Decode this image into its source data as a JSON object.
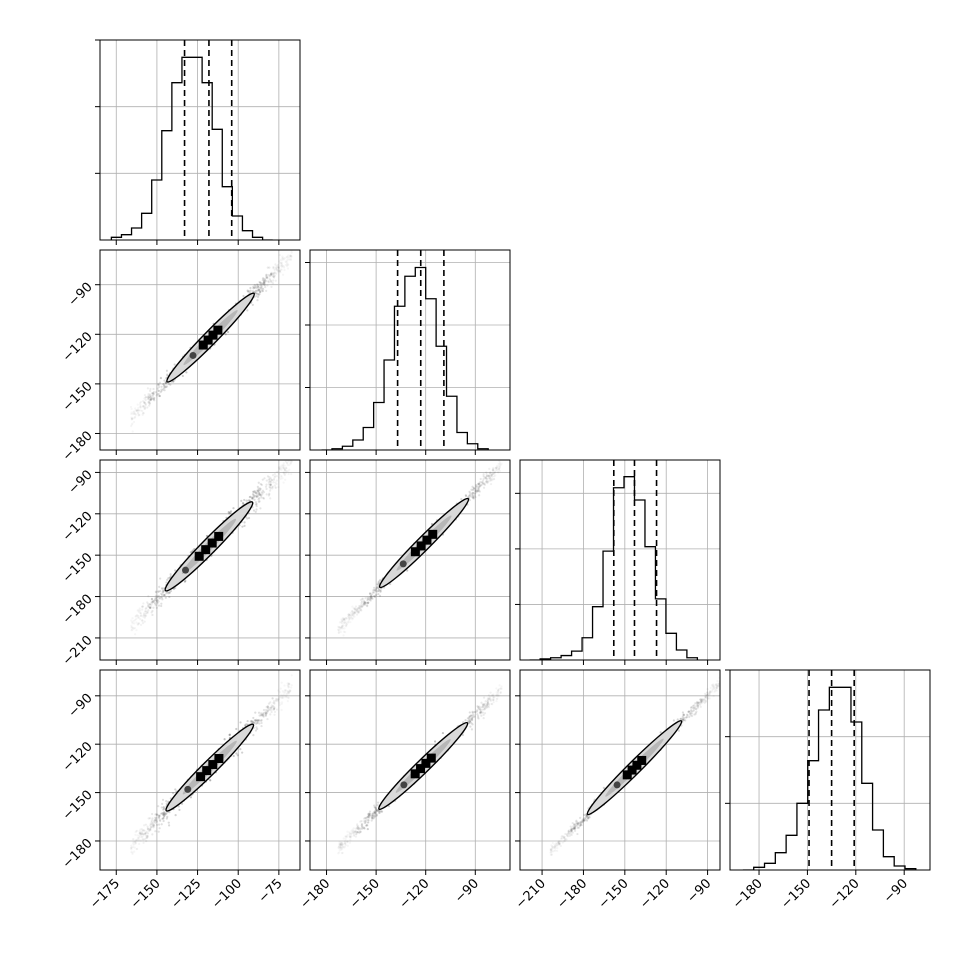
{
  "chart_data": {
    "type": "corner",
    "grid": true,
    "title": "",
    "histograms": [
      {
        "name": "hist-0",
        "xlim": [
          -185,
          -62
        ],
        "bins_start": -178,
        "bin_width": 6.2,
        "counts": [
          2,
          4,
          9,
          20,
          45,
          82,
          118,
          137,
          137,
          118,
          83,
          40,
          18,
          7,
          2,
          0
        ],
        "ymax": 150,
        "quantiles": [
          -133,
          -118,
          -104
        ],
        "yticks": [
          50,
          100,
          150
        ]
      },
      {
        "name": "hist-1",
        "xlim": [
          -190,
          -69
        ],
        "bins_start": -183,
        "bin_width": 6.3,
        "counts": [
          0,
          1,
          3,
          8,
          18,
          38,
          72,
          115,
          139,
          146,
          121,
          83,
          43,
          14,
          5,
          1
        ],
        "ymax": 160,
        "quantiles": [
          -137,
          -123,
          -109
        ],
        "yticks": [
          50,
          100,
          150
        ]
      },
      {
        "name": "hist-2",
        "xlim": [
          -226,
          -81
        ],
        "bins_start": -219,
        "bin_width": 7.6,
        "counts": [
          0,
          1,
          2,
          4,
          8,
          20,
          48,
          98,
          155,
          165,
          144,
          102,
          55,
          24,
          9,
          2
        ],
        "ymax": 180,
        "quantiles": [
          -158,
          -143,
          -127
        ],
        "yticks": [
          50,
          100,
          150
        ]
      },
      {
        "name": "hist-3",
        "xlim": [
          -198,
          -74
        ],
        "bins_start": -190,
        "bin_width": 6.7,
        "counts": [
          0,
          2,
          5,
          13,
          26,
          50,
          82,
          120,
          137,
          137,
          111,
          65,
          30,
          10,
          3,
          1
        ],
        "ymax": 150,
        "quantiles": [
          -149,
          -135,
          -121
        ],
        "yticks": [
          50,
          100,
          150
        ]
      }
    ],
    "scatter_panels": [
      {
        "row": 1,
        "col": 0,
        "xlim": [
          -185,
          -62
        ],
        "ylim": [
          -190,
          -69
        ],
        "slope": 1.0,
        "intercept": -5,
        "x_range": [
          -166,
          -67
        ],
        "spread": 1.6,
        "core": [
          -123,
          -111
        ]
      },
      {
        "row": 2,
        "col": 0,
        "xlim": [
          -185,
          -62
        ],
        "ylim": [
          -226,
          -81
        ],
        "slope": 1.2,
        "intercept": -2,
        "x_range": [
          -166,
          -67
        ],
        "spread": 2.5,
        "core": [
          -126,
          -110
        ]
      },
      {
        "row": 2,
        "col": 1,
        "xlim": [
          -190,
          -69
        ],
        "ylim": [
          -226,
          -81
        ],
        "slope": 1.2,
        "intercept": 4,
        "x_range": [
          -173,
          -74
        ],
        "spread": 1.6,
        "core": [
          -128,
          -114
        ]
      },
      {
        "row": 3,
        "col": 0,
        "xlim": [
          -185,
          -62
        ],
        "ylim": [
          -198,
          -74
        ],
        "slope": 1.0,
        "intercept": -17,
        "x_range": [
          -166,
          -67
        ],
        "spread": 2.0,
        "core": [
          -125,
          -110
        ]
      },
      {
        "row": 3,
        "col": 1,
        "xlim": [
          -190,
          -69
        ],
        "ylim": [
          -198,
          -74
        ],
        "slope": 1.0,
        "intercept": -12,
        "x_range": [
          -173,
          -74
        ],
        "spread": 1.4,
        "core": [
          -128,
          -115
        ]
      },
      {
        "row": 3,
        "col": 2,
        "xlim": [
          -226,
          -81
        ],
        "ylim": [
          -198,
          -74
        ],
        "slope": 0.85,
        "intercept": -13,
        "x_range": [
          -204,
          -78
        ],
        "spread": 1.2,
        "core": [
          -150,
          -136
        ]
      }
    ],
    "axes": [
      {
        "xlim": [
          -185,
          -62
        ],
        "xticks": [
          -175,
          -150,
          -125,
          -100,
          -75
        ],
        "xtick_labels": [
          "−175",
          "−150",
          "−125",
          "−100",
          "−75"
        ]
      },
      {
        "xlim": [
          -190,
          -69
        ],
        "xticks": [
          -180,
          -150,
          -120,
          -90
        ],
        "xtick_labels": [
          "−180",
          "−150",
          "−120",
          "−90"
        ],
        "ylim": [
          -190,
          -69
        ],
        "yticks": [
          -90,
          -120,
          -150,
          -180
        ],
        "ytick_labels": [
          "−90",
          "−120",
          "−150",
          "−180"
        ]
      },
      {
        "xlim": [
          -226,
          -81
        ],
        "xticks": [
          -210,
          -180,
          -150,
          -120,
          -90
        ],
        "xtick_labels": [
          "−210",
          "−180",
          "−150",
          "−120",
          "−90"
        ],
        "ylim": [
          -226,
          -81
        ],
        "yticks": [
          -90,
          -120,
          -150,
          -180,
          -210
        ],
        "ytick_labels": [
          "−90",
          "−120",
          "−150",
          "−180",
          "−210"
        ]
      },
      {
        "xlim": [
          -198,
          -74
        ],
        "xticks": [
          -180,
          -150,
          -120,
          -90
        ],
        "xtick_labels": [
          "−180",
          "−150",
          "−120",
          "−90"
        ],
        "ylim": [
          -198,
          -74
        ],
        "yticks": [
          -90,
          -120,
          -150,
          -180
        ],
        "ytick_labels": [
          "−90",
          "−120",
          "−150",
          "−180"
        ]
      }
    ],
    "colors": {
      "line": "#000000",
      "grid": "#b0b0b0",
      "points": "#555555",
      "contour_fill": "#d9d9d9",
      "core": "#000000"
    }
  }
}
